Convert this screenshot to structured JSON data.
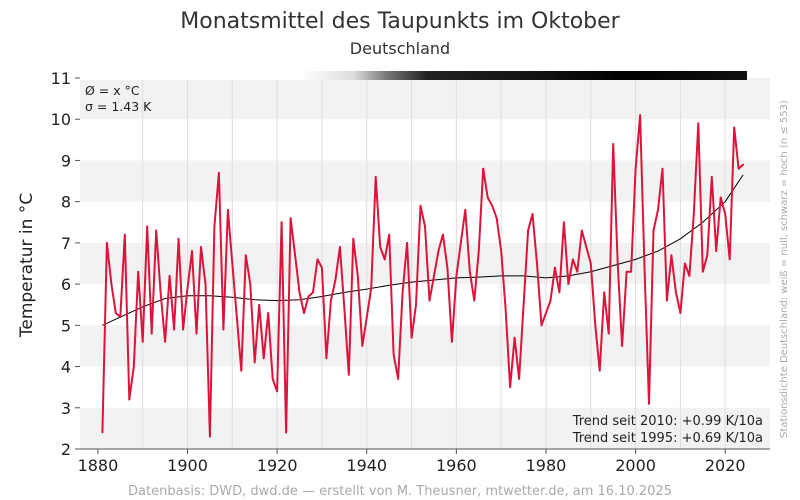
{
  "chart_data": {
    "type": "line",
    "title": "Monatsmittel des Taupunkts im Oktober",
    "subtitle": "Deutschland",
    "ylabel": "Temperatur in °C",
    "xlabel": "",
    "xlim": [
      1876,
      2030
    ],
    "ylim": [
      2,
      11
    ],
    "x_ticks": [
      1880,
      1900,
      1920,
      1940,
      1960,
      1980,
      2000,
      2020
    ],
    "y_ticks": [
      2,
      3,
      4,
      5,
      6,
      7,
      8,
      9,
      10,
      11
    ],
    "grid": true,
    "stats": {
      "mean_label": "Ø = x °C",
      "sigma_label": "σ = 1.43 K"
    },
    "trend_labels": [
      "Trend seit 2010: +0.99 K/10a",
      "Trend seit 1995: +0.69 K/10a"
    ],
    "side_note": "Stationsdichte Deutschland: weiß = null, schwarz = hoch (n ≤ 553)",
    "footer": "Datenbasis: DWD, dwd.de — erstellt von M. Theusner, mtwetter.de, am 16.10.2025",
    "colors": {
      "series": "#dc143c",
      "smooth": "#000000",
      "band": "#f2f2f2",
      "grid": "#dddddd"
    },
    "series": [
      {
        "x": [
          1881,
          1882,
          1883,
          1884,
          1885,
          1886,
          1887,
          1888,
          1889,
          1890,
          1891,
          1892,
          1893,
          1894,
          1895,
          1896,
          1897,
          1898,
          1899,
          1900,
          1901,
          1902,
          1903,
          1904,
          1905,
          1906,
          1907,
          1908,
          1909,
          1910,
          1911,
          1912,
          1913,
          1914,
          1915,
          1916,
          1917,
          1918,
          1919,
          1920,
          1921,
          1922,
          1923,
          1924,
          1925,
          1926,
          1927,
          1928,
          1929,
          1930,
          1931,
          1932,
          1933,
          1934,
          1935,
          1936,
          1937,
          1938,
          1939,
          1940,
          1941,
          1942,
          1943,
          1944,
          1945,
          1946,
          1947,
          1948,
          1949,
          1950,
          1951,
          1952,
          1953,
          1954,
          1955,
          1956,
          1957,
          1958,
          1959,
          1960,
          1961,
          1962,
          1963,
          1964,
          1965,
          1966,
          1967,
          1968,
          1969,
          1970,
          1971,
          1972,
          1973,
          1974,
          1975,
          1976,
          1977,
          1978,
          1979,
          1980,
          1981,
          1982,
          1983,
          1984,
          1985,
          1986,
          1987,
          1988,
          1989,
          1990,
          1991,
          1992,
          1993,
          1994,
          1995,
          1996,
          1997,
          1998,
          1999,
          2000,
          2001,
          2002,
          2003,
          2004,
          2005,
          2006,
          2007,
          2008,
          2009,
          2010,
          2011,
          2012,
          2013,
          2014,
          2015,
          2016,
          2017,
          2018,
          2019,
          2020,
          2021,
          2022,
          2023,
          2024
        ],
        "values": [
          2.4,
          7.0,
          6.0,
          5.3,
          5.2,
          7.2,
          3.2,
          4.0,
          6.3,
          4.6,
          7.4,
          4.8,
          7.3,
          5.8,
          4.6,
          6.2,
          4.9,
          7.1,
          4.9,
          5.9,
          6.8,
          4.8,
          6.9,
          6.0,
          2.3,
          7.4,
          8.7,
          4.9,
          7.8,
          6.5,
          5.2,
          3.9,
          6.7,
          6.0,
          4.1,
          5.5,
          4.2,
          5.3,
          3.7,
          3.4,
          7.5,
          2.4,
          7.6,
          6.7,
          5.8,
          5.3,
          5.7,
          5.8,
          6.6,
          6.4,
          4.2,
          5.6,
          6.1,
          6.9,
          5.4,
          3.8,
          7.1,
          6.2,
          4.5,
          5.2,
          5.9,
          8.6,
          6.9,
          6.6,
          7.2,
          4.3,
          3.7,
          5.8,
          7.0,
          4.7,
          5.5,
          7.9,
          7.4,
          5.6,
          6.2,
          6.8,
          7.2,
          6.4,
          4.6,
          6.2,
          7.0,
          7.8,
          6.3,
          5.6,
          6.8,
          8.8,
          8.1,
          7.9,
          7.6,
          6.8,
          5.4,
          3.5,
          4.7,
          3.7,
          5.5,
          7.3,
          7.7,
          6.5,
          5.0,
          5.3,
          5.6,
          6.4,
          5.8,
          7.5,
          6.0,
          6.6,
          6.3,
          7.3,
          6.9,
          6.5,
          5.0,
          3.9,
          5.8,
          4.8,
          9.4,
          6.5,
          4.5,
          6.3,
          6.3,
          8.8,
          10.1,
          6.4,
          3.1,
          7.3,
          7.8,
          8.8,
          5.6,
          6.7,
          5.8,
          5.3,
          6.5,
          6.2,
          7.7,
          9.9,
          6.3,
          6.7,
          8.6,
          6.8,
          8.1,
          7.7,
          6.6,
          9.8,
          8.8,
          8.9
        ]
      },
      {
        "x": [
          1881,
          1885,
          1890,
          1895,
          1900,
          1905,
          1910,
          1915,
          1920,
          1925,
          1930,
          1935,
          1940,
          1945,
          1950,
          1955,
          1960,
          1965,
          1970,
          1975,
          1980,
          1985,
          1990,
          1995,
          2000,
          2005,
          2010,
          2015,
          2020,
          2024
        ],
        "values": [
          5.0,
          5.2,
          5.45,
          5.65,
          5.72,
          5.72,
          5.68,
          5.62,
          5.6,
          5.62,
          5.7,
          5.8,
          5.88,
          5.97,
          6.05,
          6.1,
          6.15,
          6.17,
          6.2,
          6.2,
          6.15,
          6.2,
          6.3,
          6.45,
          6.6,
          6.8,
          7.1,
          7.5,
          8.0,
          8.65
        ]
      }
    ]
  }
}
